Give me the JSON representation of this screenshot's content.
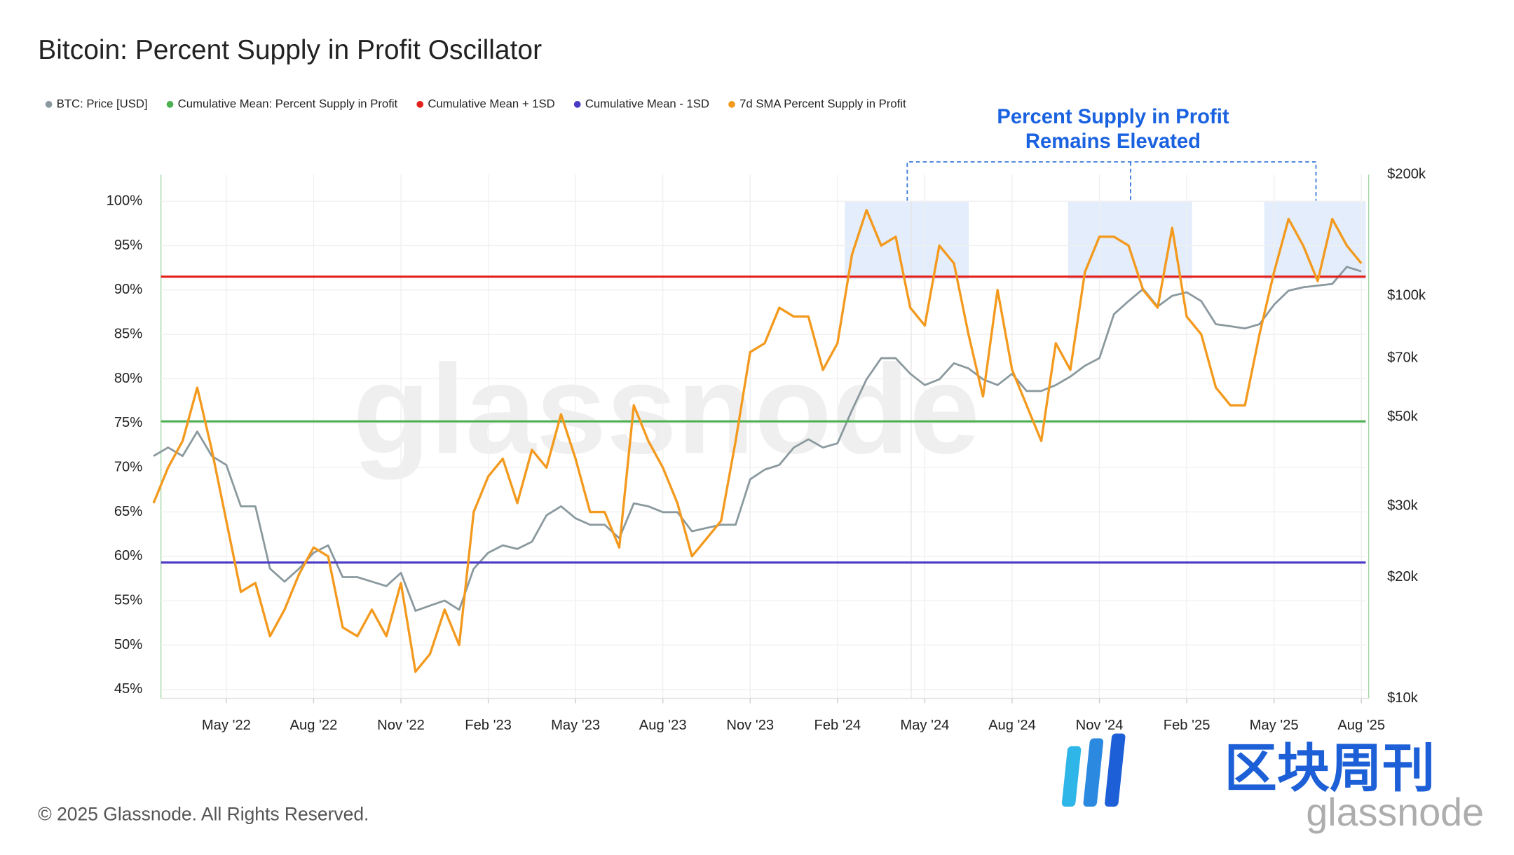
{
  "chart_data": {
    "type": "line",
    "title": "Bitcoin: Percent Supply in Profit Oscillator",
    "annotation": [
      "Percent Supply in Profit",
      "Remains Elevated"
    ],
    "footer": "© 2025 Glassnode. All Rights Reserved.",
    "watermark": "glassnode",
    "logo_text": "区块周刊",
    "logo_sub": "glassnode",
    "categories": [
      null,
      null,
      null,
      null,
      null,
      "May '22",
      null,
      null,
      null,
      null,
      null,
      "Aug '22",
      null,
      null,
      null,
      null,
      null,
      "Nov '22",
      null,
      null,
      null,
      null,
      null,
      "Feb '23",
      null,
      null,
      null,
      null,
      null,
      "May '23",
      null,
      null,
      null,
      null,
      null,
      "Aug '23",
      null,
      null,
      null,
      null,
      null,
      "Nov '23",
      null,
      null,
      null,
      null,
      null,
      "Feb '24",
      null,
      null,
      null,
      null,
      null,
      "May '24",
      null,
      null,
      null,
      null,
      null,
      "Aug '24",
      null,
      null,
      null,
      null,
      null,
      "Nov '24",
      null,
      null,
      null,
      null,
      null,
      "Feb '25",
      null,
      null,
      null,
      null,
      null,
      "May '25",
      null,
      null,
      null,
      null,
      null,
      "Aug '25"
    ],
    "series": [
      {
        "name": "BTC: Price [USD]",
        "color": "#8a999e",
        "axis": "y2",
        "values": [
          40000,
          42000,
          40000,
          46000,
          40000,
          38000,
          30000,
          30000,
          21000,
          19500,
          21000,
          23000,
          24000,
          20000,
          20000,
          19500,
          19000,
          20500,
          16500,
          17000,
          17500,
          16600,
          21000,
          23000,
          24000,
          23500,
          24500,
          28500,
          30000,
          28000,
          27000,
          27000,
          25000,
          30500,
          30000,
          29000,
          29000,
          26000,
          26500,
          27000,
          27000,
          35000,
          37000,
          38000,
          42000,
          44000,
          42000,
          43000,
          52000,
          62000,
          70000,
          70000,
          64000,
          60000,
          62000,
          68000,
          66000,
          62000,
          60000,
          64000,
          58000,
          58000,
          60000,
          63000,
          67000,
          70000,
          90000,
          97000,
          104000,
          94000,
          100000,
          102000,
          97000,
          85000,
          84000,
          83000,
          85000,
          95000,
          103000,
          105000,
          106000,
          107000,
          118000,
          115000
        ]
      },
      {
        "name": "Cumulative Mean: Percent Supply in Profit",
        "color": "#4caf50",
        "value": 75.2
      },
      {
        "name": "Cumulative Mean + 1SD",
        "color": "#e3211c",
        "value": 91.5
      },
      {
        "name": "Cumulative Mean - 1SD",
        "color": "#4a3bc4",
        "value": 59.3
      },
      {
        "name": "7d SMA Percent Supply in Profit",
        "color": "#f39a1e",
        "values": [
          66,
          70,
          73,
          79,
          72,
          64,
          56,
          57,
          51,
          54,
          58,
          61,
          60,
          52,
          51,
          54,
          51,
          57,
          47,
          49,
          54,
          50,
          65,
          69,
          71,
          66,
          72,
          70,
          76,
          71,
          65,
          65,
          61,
          77,
          73,
          70,
          66,
          60,
          62,
          64,
          73,
          83,
          84,
          88,
          87,
          87,
          81,
          84,
          94,
          99,
          95,
          96,
          88,
          86,
          95,
          93,
          85,
          78,
          90,
          81,
          77,
          73,
          84,
          81,
          92,
          96,
          96,
          95,
          90,
          88,
          97,
          87,
          85,
          79,
          77,
          77,
          85,
          92,
          98,
          95,
          91,
          98,
          95,
          93
        ]
      }
    ],
    "ylim": [
      44,
      103
    ],
    "yticks": [
      {
        "value": 45,
        "label": "45%"
      },
      {
        "value": 50,
        "label": "50%"
      },
      {
        "value": 55,
        "label": "55%"
      },
      {
        "value": 60,
        "label": "60%"
      },
      {
        "value": 65,
        "label": "65%"
      },
      {
        "value": 70,
        "label": "70%"
      },
      {
        "value": 75,
        "label": "75%"
      },
      {
        "value": 80,
        "label": "80%"
      },
      {
        "value": 85,
        "label": "85%"
      },
      {
        "value": 90,
        "label": "90%"
      },
      {
        "value": 95,
        "label": "95%"
      },
      {
        "value": 100,
        "label": "100%"
      }
    ],
    "y2lim": [
      10000,
      200000
    ],
    "y2log": true,
    "y2ticks": [
      {
        "value": 10000,
        "label": "$10k"
      },
      {
        "value": 20000,
        "label": "$20k"
      },
      {
        "value": 30000,
        "label": "$30k"
      },
      {
        "value": 50000,
        "label": "$50k"
      },
      {
        "value": 70000,
        "label": "$70k"
      },
      {
        "value": 100000,
        "label": "$100k"
      },
      {
        "value": 200000,
        "label": "$200k"
      }
    ],
    "grid": true
  }
}
